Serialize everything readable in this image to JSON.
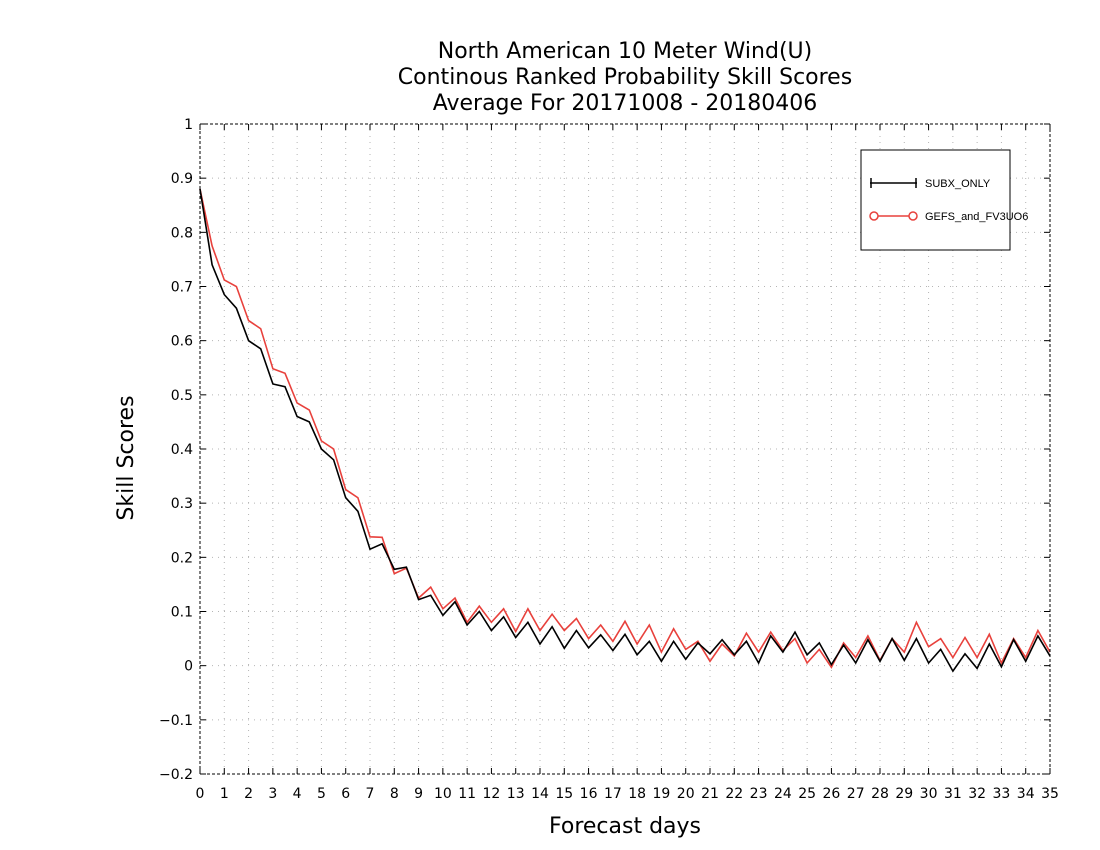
{
  "chart_data": {
    "type": "line",
    "title_lines": [
      "North American 10 Meter Wind(U)",
      "Continous Ranked Probability Skill Scores",
      "Average For 20171008 - 20180406"
    ],
    "xlabel": "Forecast days",
    "ylabel": "Skill Scores",
    "xlim": [
      0,
      35
    ],
    "ylim": [
      -0.2,
      1
    ],
    "x_ticks": [
      0,
      1,
      2,
      3,
      4,
      5,
      6,
      7,
      8,
      9,
      10,
      11,
      12,
      13,
      14,
      15,
      16,
      17,
      18,
      19,
      20,
      21,
      22,
      23,
      24,
      25,
      26,
      27,
      28,
      29,
      30,
      31,
      32,
      33,
      34,
      35
    ],
    "y_ticks": [
      -0.2,
      -0.1,
      0,
      0.1,
      0.2,
      0.3,
      0.4,
      0.5,
      0.6,
      0.7,
      0.8,
      0.9,
      1
    ],
    "y_tick_labels": [
      "−0.2",
      "−0.1",
      "0",
      "0.1",
      "0.2",
      "0.3",
      "0.4",
      "0.5",
      "0.6",
      "0.7",
      "0.8",
      "0.9",
      "1"
    ],
    "grid": true,
    "legend_placement": "top-right",
    "x": [
      0,
      0.5,
      1,
      1.5,
      2,
      2.5,
      3,
      3.5,
      4,
      4.5,
      5,
      5.5,
      6,
      6.5,
      7,
      7.5,
      8,
      8.5,
      9,
      9.5,
      10,
      10.5,
      11,
      11.5,
      12,
      12.5,
      13,
      13.5,
      14,
      14.5,
      15,
      15.5,
      16,
      16.5,
      17,
      17.5,
      18,
      18.5,
      19,
      19.5,
      20,
      20.5,
      21,
      21.5,
      22,
      22.5,
      23,
      23.5,
      24,
      24.5,
      25,
      25.5,
      26,
      26.5,
      27,
      27.5,
      28,
      28.5,
      29,
      29.5,
      30,
      30.5,
      31,
      31.5,
      32,
      32.5,
      33,
      33.5,
      34,
      34.5,
      35
    ],
    "series": [
      {
        "name": "SUBX_ONLY",
        "color": "#000000",
        "marker": "plus",
        "values": [
          0.88,
          0.74,
          0.685,
          0.66,
          0.6,
          0.585,
          0.52,
          0.515,
          0.46,
          0.45,
          0.4,
          0.38,
          0.31,
          0.285,
          0.215,
          0.225,
          0.178,
          0.182,
          0.122,
          0.13,
          0.093,
          0.118,
          0.075,
          0.1,
          0.065,
          0.09,
          0.052,
          0.08,
          0.04,
          0.072,
          0.032,
          0.065,
          0.033,
          0.057,
          0.028,
          0.058,
          0.02,
          0.045,
          0.008,
          0.045,
          0.012,
          0.042,
          0.022,
          0.048,
          0.02,
          0.045,
          0.005,
          0.055,
          0.025,
          0.062,
          0.02,
          0.042,
          0.002,
          0.038,
          0.005,
          0.048,
          0.008,
          0.05,
          0.01,
          0.05,
          0.005,
          0.03,
          -0.01,
          0.022,
          -0.005,
          0.04,
          -0.002,
          0.048,
          0.008,
          0.055,
          0.018
        ]
      },
      {
        "name": "GEFS_and_FV3UO6",
        "color": "#e8413c",
        "marker": "circle",
        "values": [
          0.88,
          0.775,
          0.712,
          0.7,
          0.637,
          0.622,
          0.548,
          0.54,
          0.485,
          0.472,
          0.415,
          0.4,
          0.325,
          0.31,
          0.238,
          0.237,
          0.17,
          0.18,
          0.125,
          0.145,
          0.105,
          0.125,
          0.08,
          0.11,
          0.08,
          0.105,
          0.063,
          0.105,
          0.065,
          0.095,
          0.065,
          0.087,
          0.05,
          0.075,
          0.045,
          0.082,
          0.04,
          0.075,
          0.025,
          0.068,
          0.03,
          0.045,
          0.008,
          0.04,
          0.018,
          0.06,
          0.025,
          0.062,
          0.028,
          0.05,
          0.005,
          0.03,
          -0.003,
          0.042,
          0.015,
          0.055,
          0.01,
          0.05,
          0.025,
          0.08,
          0.035,
          0.05,
          0.015,
          0.052,
          0.015,
          0.058,
          0.005,
          0.05,
          0.015,
          0.065,
          0.025
        ]
      }
    ]
  },
  "legend": {
    "items": [
      "SUBX_ONLY",
      "GEFS_and_FV3UO6"
    ]
  }
}
